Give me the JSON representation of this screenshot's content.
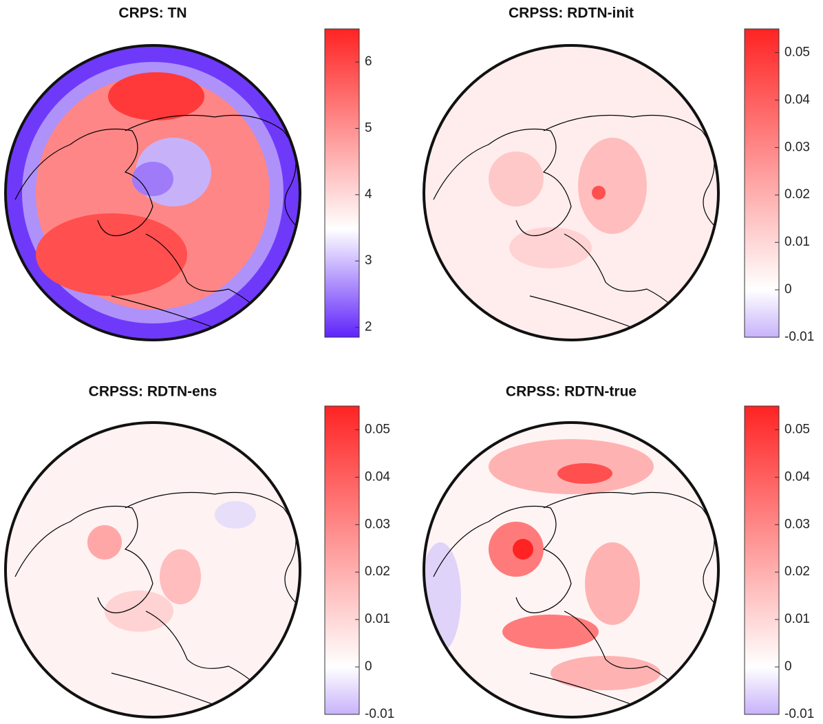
{
  "chart_data": [
    {
      "type": "map",
      "title": "CRPS: TN",
      "clim": [
        1.85,
        6.5
      ],
      "cticks": [
        2,
        3,
        4,
        5,
        6
      ]
    },
    {
      "type": "map",
      "title": "CRPSS: RDTN-init",
      "clim": [
        -0.01,
        0.055
      ],
      "cticks": [
        -0.01,
        0,
        0.01,
        0.02,
        0.03,
        0.04,
        0.05
      ]
    },
    {
      "type": "map",
      "title": "CRPSS: RDTN-ens",
      "clim": [
        -0.01,
        0.055
      ],
      "cticks": [
        -0.01,
        0,
        0.01,
        0.02,
        0.03,
        0.04,
        0.05
      ]
    },
    {
      "type": "map",
      "title": "CRPSS: RDTN-true",
      "clim": [
        -0.01,
        0.055
      ],
      "cticks": [
        -0.01,
        0,
        0.01,
        0.02,
        0.03,
        0.04,
        0.05
      ]
    }
  ]
}
